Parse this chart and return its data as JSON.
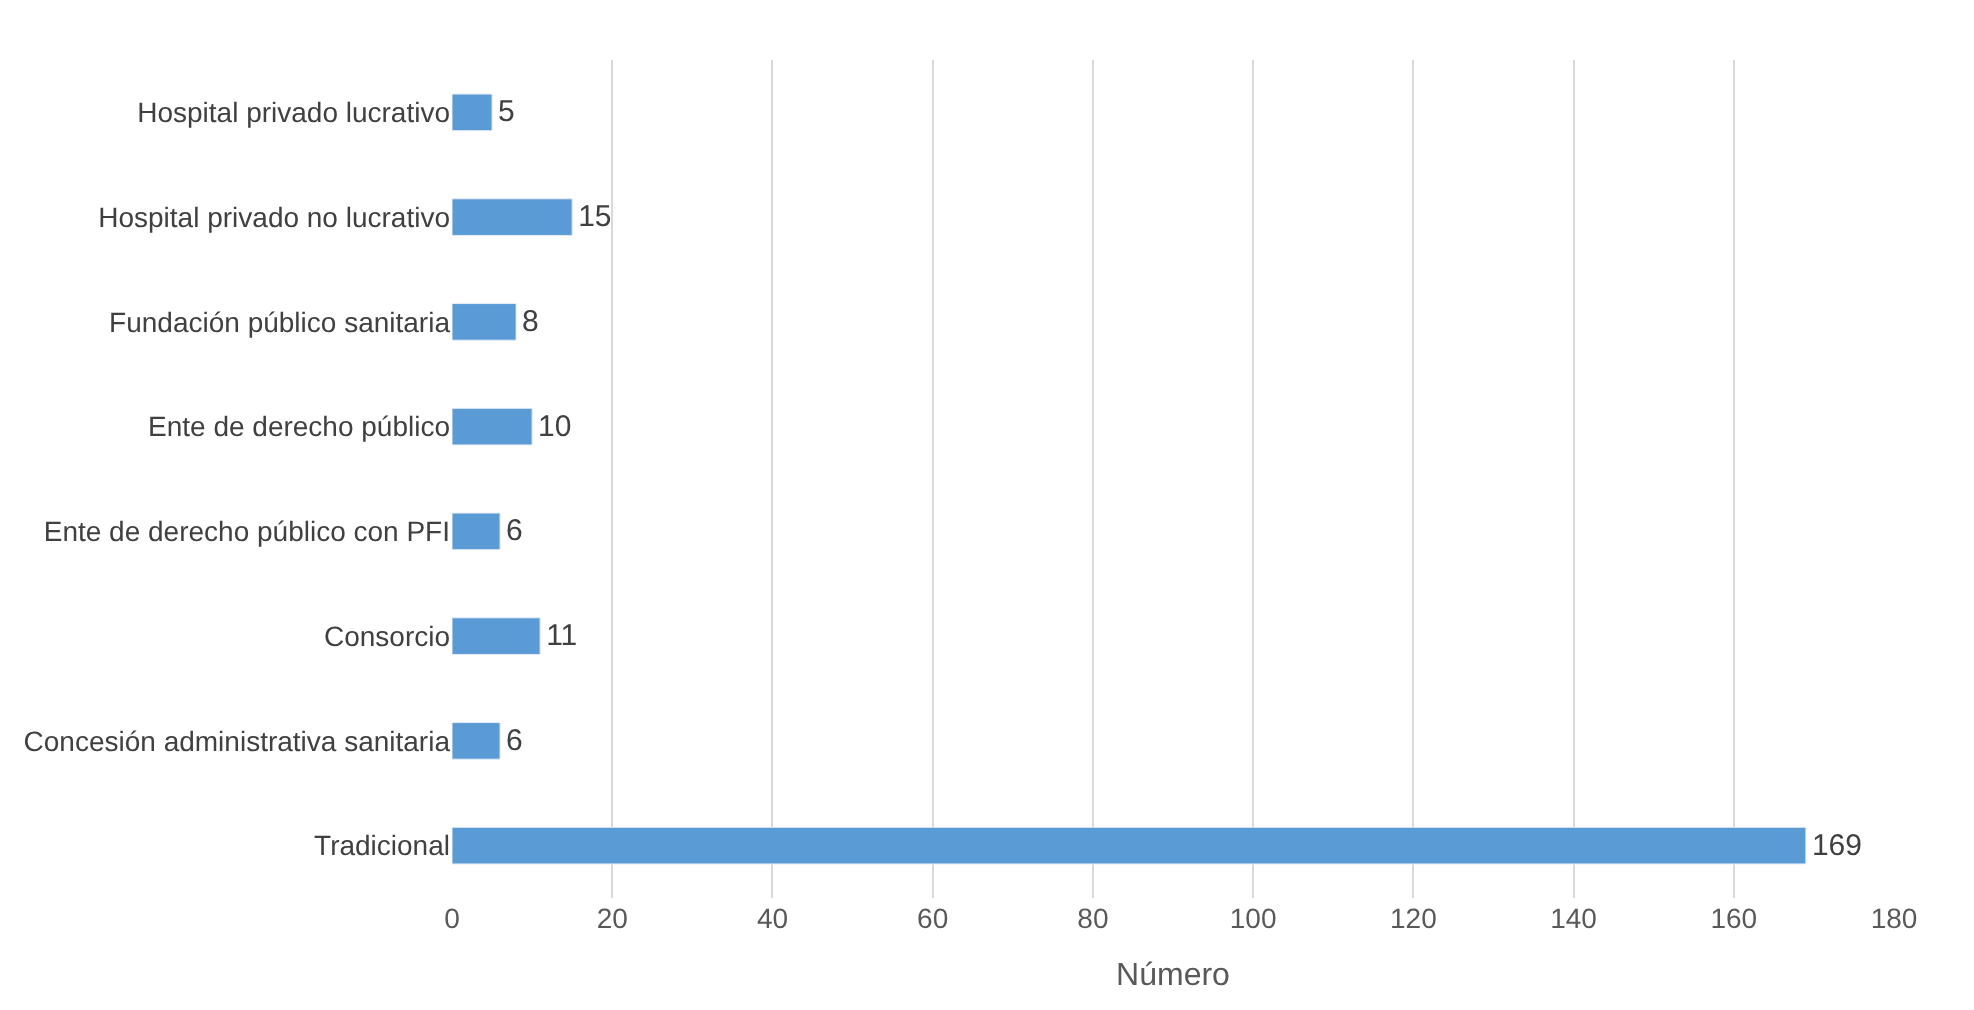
{
  "chart_data": {
    "type": "bar",
    "orientation": "horizontal",
    "xlabel": "Número",
    "categories": [
      "Hospital privado lucrativo",
      "Hospital privado no lucrativo",
      "Fundación público sanitaria",
      "Ente de derecho público",
      "Ente de derecho público con PFI",
      "Consorcio",
      "Concesión administrativa sanitaria",
      "Tradicional"
    ],
    "values": [
      5,
      15,
      8,
      10,
      6,
      11,
      6,
      169
    ],
    "color": "#5b9bd5",
    "xlim": [
      0,
      180
    ],
    "xticks": [
      0,
      20,
      40,
      60,
      80,
      100,
      120,
      140,
      160,
      180
    ],
    "grid": "x",
    "data_labels": true
  }
}
